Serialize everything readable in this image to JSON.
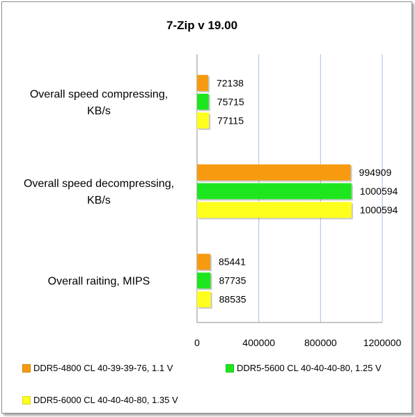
{
  "chart_data": {
    "type": "bar",
    "orientation": "horizontal",
    "title": "7-Zip v 19.00",
    "categories": [
      [
        "Overall speed compressing,",
        "KB/s"
      ],
      [
        "Overall speed  decompressing,",
        "KB/s"
      ],
      [
        "Overall raiting, MIPS"
      ]
    ],
    "series": [
      {
        "name": "DDR5-4800 CL 40-39-39-76, 1.1 V",
        "color": "#f79a10",
        "values": [
          72138,
          994909,
          85441
        ]
      },
      {
        "name": "DDR5-5600 CL 40-40-40-80, 1.25 V",
        "color": "#1ee61e",
        "values": [
          75715,
          1000594,
          87735
        ]
      },
      {
        "name": "DDR5-6000 CL 40-40-40-80, 1.35 V",
        "color": "#ffff1e",
        "values": [
          77115,
          1000594,
          88535
        ]
      }
    ],
    "xlim": [
      0,
      1200000
    ],
    "xticks": [
      "0",
      "400000",
      "800000",
      "1200000"
    ],
    "xtick_values": [
      0,
      400000,
      800000,
      1200000
    ],
    "grid": true,
    "legend_position": "bottom",
    "xlabel": "",
    "ylabel": ""
  }
}
